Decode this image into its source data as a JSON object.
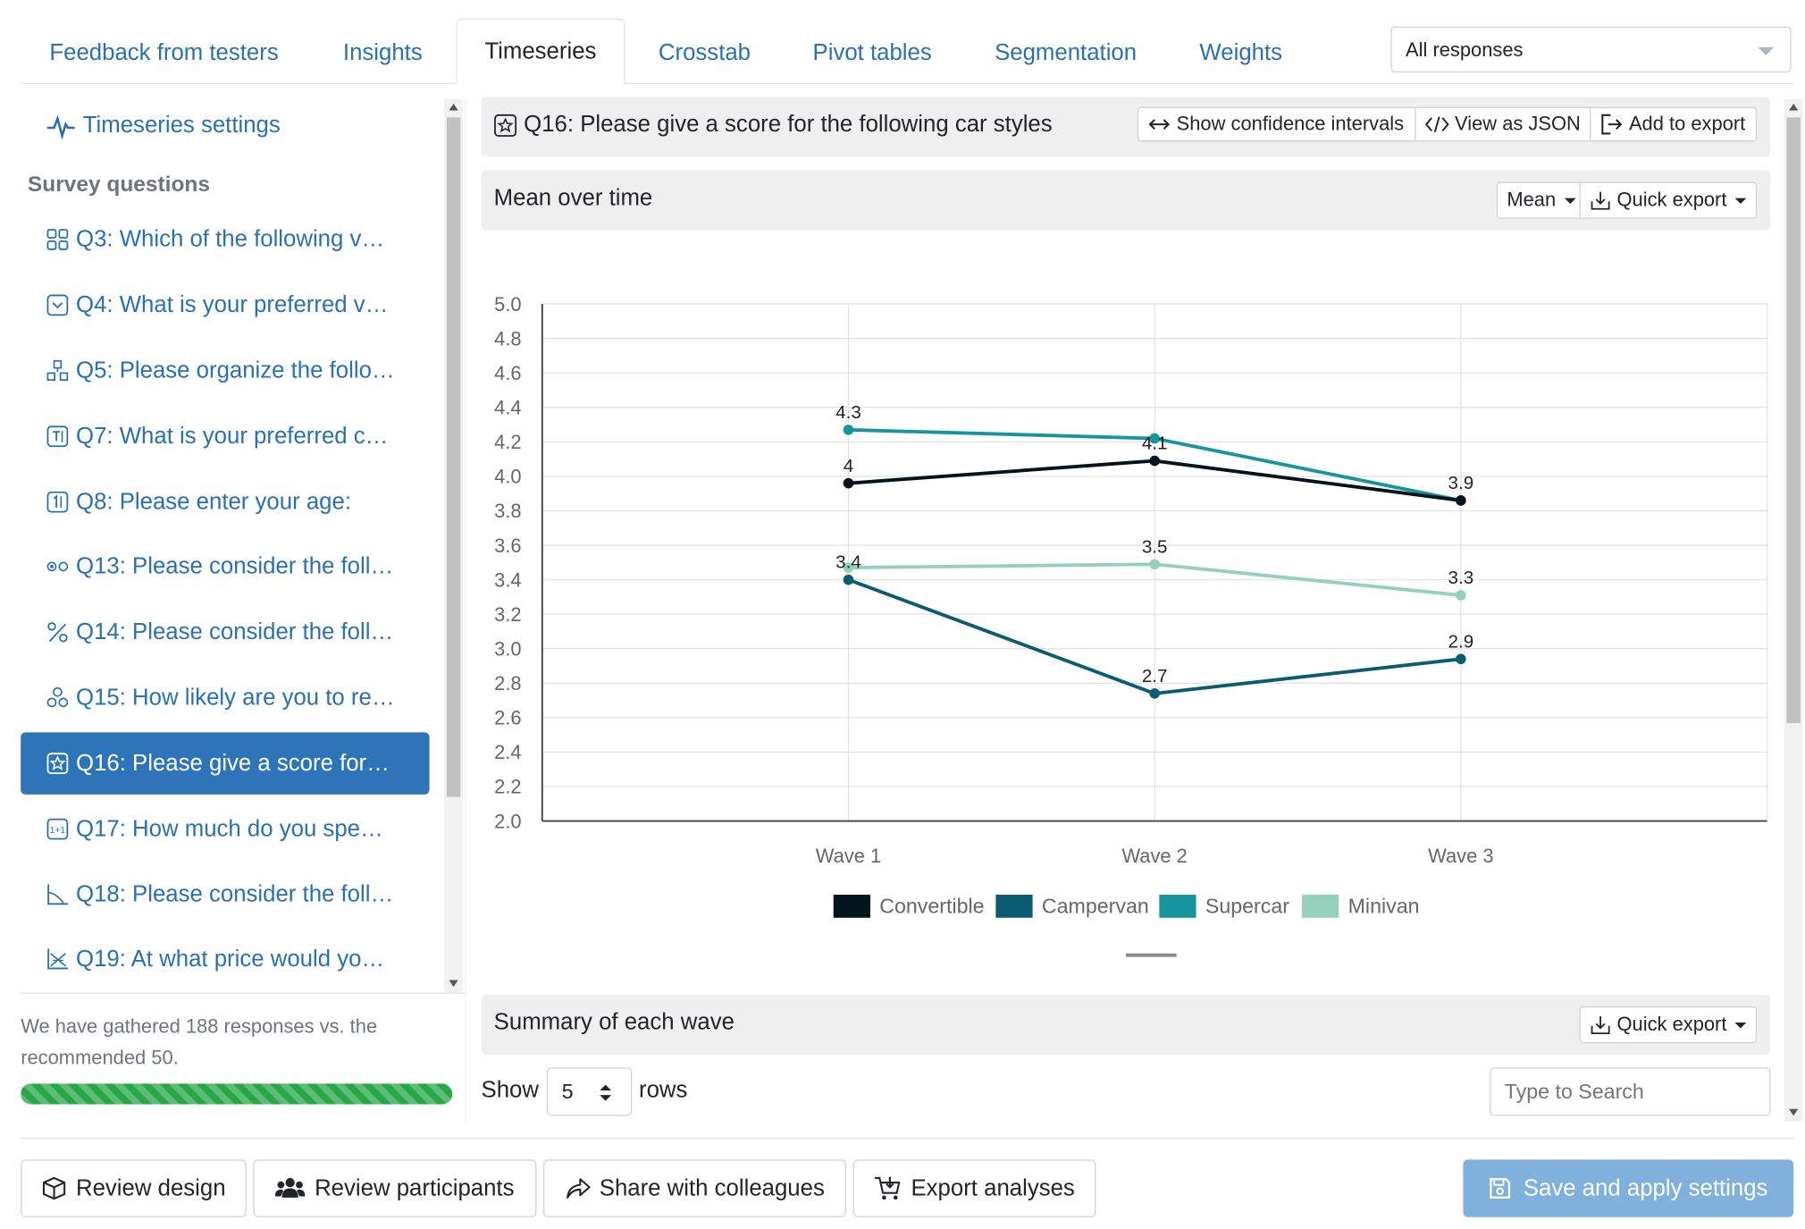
{
  "tabs": [
    "Feedback from testers",
    "Insights",
    "Timeseries",
    "Crosstab",
    "Pivot tables",
    "Segmentation",
    "Weights"
  ],
  "active_tab": "Timeseries",
  "responses_select": "All responses",
  "sidebar": {
    "settings_link": "Timeseries settings",
    "section_title": "Survey questions",
    "questions": [
      {
        "label": "Q3: Which of the following v…",
        "icon": "grid-icon"
      },
      {
        "label": "Q4: What is your preferred v…",
        "icon": "dropdown-icon"
      },
      {
        "label": "Q5: Please organize the follo…",
        "icon": "sort-icon"
      },
      {
        "label": "Q7: What is your preferred c…",
        "icon": "text-icon"
      },
      {
        "label": "Q8: Please enter your age:",
        "icon": "number-icon"
      },
      {
        "label": "Q13: Please consider the foll…",
        "icon": "radio-icon"
      },
      {
        "label": "Q14: Please consider the foll…",
        "icon": "percent-icon"
      },
      {
        "label": "Q15: How likely are you to re…",
        "icon": "nps-icon"
      },
      {
        "label": "Q16: Please give a score for…",
        "icon": "star-icon",
        "active": true
      },
      {
        "label": "Q17: How much do you spe…",
        "icon": "currency-icon"
      },
      {
        "label": "Q18: Please consider the foll…",
        "icon": "chart-axis-icon"
      },
      {
        "label": "Q19: At what price would yo…",
        "icon": "price-chart-icon"
      }
    ],
    "note": "We have gathered 188 responses vs. the recommended 50.",
    "progress_fraction": 1.0
  },
  "question_header": {
    "title": "Q16: Please give a score for the following car styles",
    "buttons": [
      "Show confidence intervals",
      "View as JSON",
      "Add to export"
    ]
  },
  "chart_panel": {
    "title": "Mean over time",
    "stat_select": "Mean",
    "export_label": "Quick export"
  },
  "chart_data": {
    "type": "line",
    "x": [
      "Wave 1",
      "Wave 2",
      "Wave 3"
    ],
    "ylim": [
      2.0,
      5.0
    ],
    "yticks": [
      "5.0",
      "4.8",
      "4.6",
      "4.4",
      "4.2",
      "4.0",
      "3.8",
      "3.6",
      "3.4",
      "3.2",
      "3.0",
      "2.8",
      "2.6",
      "2.4",
      "2.2",
      "2.0"
    ],
    "grid": true,
    "legend_position": "bottom",
    "series": [
      {
        "name": "Convertible",
        "values": [
          3.96,
          4.09,
          3.86
        ],
        "labels": [
          "4",
          "4.1",
          "3.9"
        ],
        "color": "#04141c"
      },
      {
        "name": "Campervan",
        "values": [
          3.4,
          2.74,
          2.94
        ],
        "labels": [
          "3.4",
          "2.7",
          "2.9"
        ],
        "color": "#0b5b73"
      },
      {
        "name": "Supercar",
        "values": [
          4.27,
          4.22,
          3.86
        ],
        "labels": [
          "4.3",
          "",
          ""
        ],
        "color": "#16959c"
      },
      {
        "name": "Minivan",
        "values": [
          3.47,
          3.49,
          3.31
        ],
        "labels": [
          "",
          "3.5",
          "3.3"
        ],
        "color": "#93d1bd"
      }
    ]
  },
  "summary_panel": {
    "title": "Summary of each wave",
    "export_label": "Quick export",
    "show_label": "Show",
    "rows_value": "5",
    "rows_label": "rows",
    "search_placeholder": "Type to Search"
  },
  "footer": {
    "buttons": [
      "Review design",
      "Review participants",
      "Share with colleagues",
      "Export analyses"
    ],
    "save_label": "Save and apply settings"
  }
}
